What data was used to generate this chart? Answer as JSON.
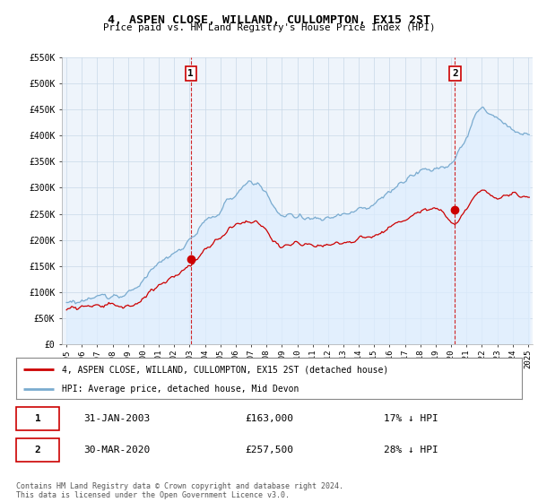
{
  "title": "4, ASPEN CLOSE, WILLAND, CULLOMPTON, EX15 2ST",
  "subtitle": "Price paid vs. HM Land Registry's House Price Index (HPI)",
  "legend_line1": "4, ASPEN CLOSE, WILLAND, CULLOMPTON, EX15 2ST (detached house)",
  "legend_line2": "HPI: Average price, detached house, Mid Devon",
  "annotation1_date": "31-JAN-2003",
  "annotation1_price": "£163,000",
  "annotation1_hpi": "17% ↓ HPI",
  "annotation2_date": "30-MAR-2020",
  "annotation2_price": "£257,500",
  "annotation2_hpi": "28% ↓ HPI",
  "footnote": "Contains HM Land Registry data © Crown copyright and database right 2024.\nThis data is licensed under the Open Government Licence v3.0.",
  "paid_color": "#cc0000",
  "hpi_color": "#7aabcf",
  "hpi_fill_color": "#ddeeff",
  "vline_color": "#cc0000",
  "background_color": "#ffffff",
  "plot_bg_color": "#eef4fb",
  "grid_color": "#c8d8e8",
  "sale1_year": 2003.08,
  "sale2_year": 2020.25,
  "sale1_price": 163000,
  "sale2_price": 257500,
  "ylim_min": 0,
  "ylim_max": 550000,
  "xlim_min": 1994.7,
  "xlim_max": 2025.3
}
